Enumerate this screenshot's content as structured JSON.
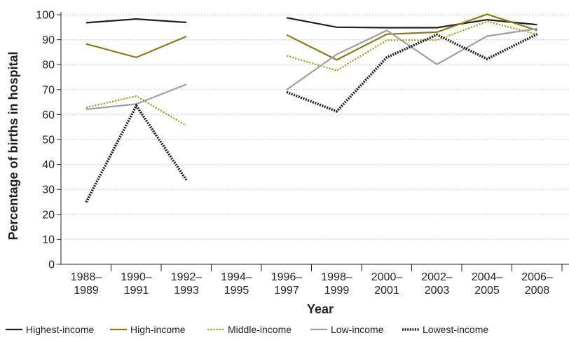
{
  "chart_data": {
    "type": "line",
    "title": "",
    "xlabel": "Year",
    "ylabel": "Percentage of births in hospital",
    "ylim": [
      0,
      100
    ],
    "yticks": [
      0,
      10,
      20,
      30,
      40,
      50,
      60,
      70,
      80,
      90,
      100
    ],
    "grid": "horizontal dotted",
    "legend_position": "bottom",
    "categories": [
      [
        "1988–",
        "1989"
      ],
      [
        "1990–",
        "1991"
      ],
      [
        "1992–",
        "1993"
      ],
      [
        "1994–",
        "1995"
      ],
      [
        "1996–",
        "1997"
      ],
      [
        "1998–",
        "1999"
      ],
      [
        "2000–",
        "2001"
      ],
      [
        "2002–",
        "2003"
      ],
      [
        "2004–",
        "2005"
      ],
      [
        "2006–",
        "2008"
      ]
    ],
    "series": [
      {
        "name": "Highest-income",
        "color": "#231f20",
        "style": "solid",
        "values": [
          96.8,
          98.3,
          96.9,
          null,
          98.8,
          95.0,
          94.8,
          94.8,
          98.0,
          96.0
        ]
      },
      {
        "name": "High-income",
        "color": "#847d12",
        "style": "solid",
        "values": [
          88.3,
          82.9,
          91.3,
          null,
          91.9,
          81.9,
          92.2,
          93.0,
          100.2,
          93.7
        ]
      },
      {
        "name": "Middle-income",
        "color": "#a09a1e",
        "style": "dotted",
        "values": [
          62.8,
          67.4,
          55.6,
          null,
          83.6,
          77.6,
          89.8,
          89.8,
          97.3,
          92.2
        ]
      },
      {
        "name": "Low-income",
        "color": "#9d9fa2",
        "style": "solid",
        "values": [
          62.1,
          64.2,
          72.1,
          null,
          69.9,
          84.1,
          93.7,
          80.1,
          91.4,
          94.4
        ]
      },
      {
        "name": "Lowest-income",
        "color": "#231f20",
        "style": "dotted",
        "values": [
          24.9,
          63.5,
          33.8,
          null,
          69.0,
          61.3,
          82.9,
          92.0,
          82.3,
          92.2
        ]
      }
    ]
  }
}
